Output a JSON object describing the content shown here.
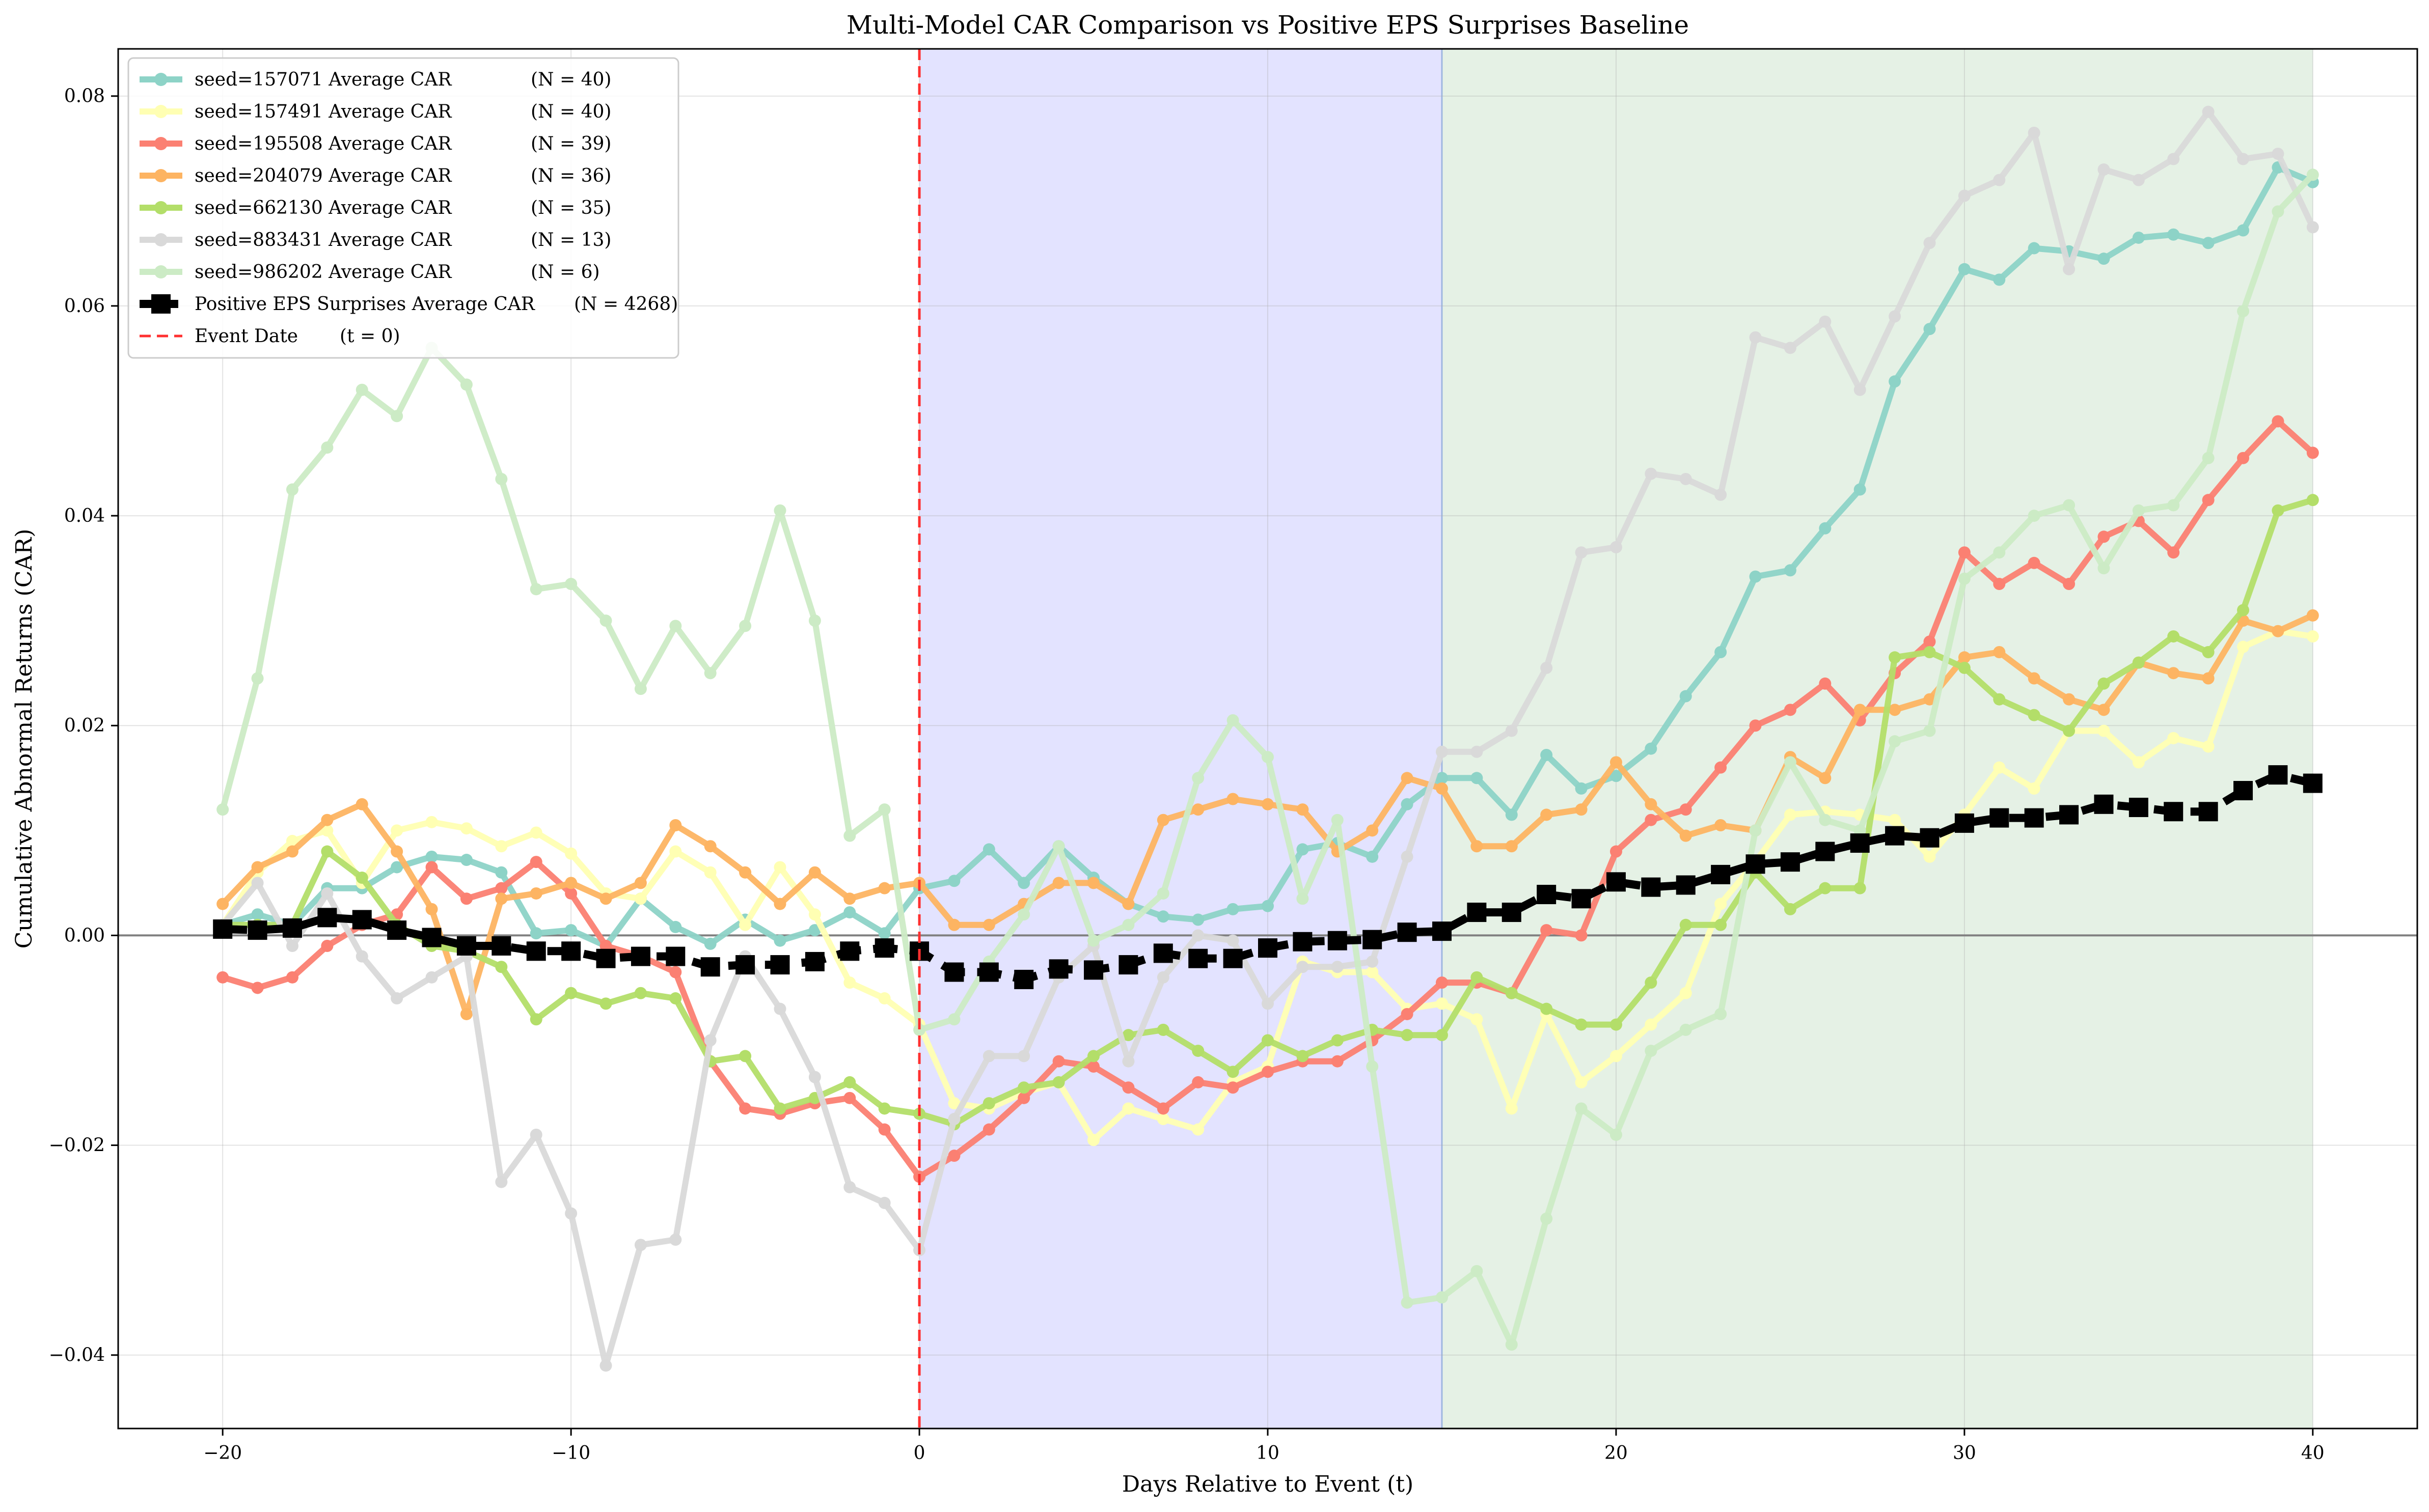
{
  "chart_data": {
    "type": "line",
    "title": "Multi-Model CAR Comparison vs Positive EPS Surprises Baseline",
    "xlabel": "Days Relative to Event (t)",
    "ylabel": "Cumulative Abnormal Returns (CAR)",
    "xlim": [
      -23,
      43
    ],
    "ylim": [
      -0.047,
      0.0845
    ],
    "xticks": [
      -20,
      -10,
      0,
      10,
      20,
      30,
      40
    ],
    "xtick_labels": [
      "−20",
      "−10",
      "0",
      "10",
      "20",
      "30",
      "40"
    ],
    "yticks": [
      -0.04,
      -0.02,
      0.0,
      0.02,
      0.04,
      0.06,
      0.08
    ],
    "ytick_labels": [
      "−0.04",
      "−0.02",
      "0.00",
      "0.02",
      "0.04",
      "0.06",
      "0.08"
    ],
    "grid": true,
    "legend_position": "upper left",
    "shaded_regions": [
      {
        "x0": 0,
        "x1": 15,
        "color": "#c8c8ff",
        "alpha": 0.5
      },
      {
        "x0": 15,
        "x1": 40,
        "color": "#bddcbd",
        "alpha": 0.4
      }
    ],
    "event_line": {
      "x": 0,
      "color": "#ff3030"
    },
    "x": [
      -20,
      -19,
      -18,
      -17,
      -16,
      -15,
      -14,
      -13,
      -12,
      -11,
      -10,
      -9,
      -8,
      -7,
      -6,
      -5,
      -4,
      -3,
      -2,
      -1,
      0,
      1,
      2,
      3,
      4,
      5,
      6,
      7,
      8,
      9,
      10,
      11,
      12,
      13,
      14,
      15,
      16,
      17,
      18,
      19,
      20,
      21,
      22,
      23,
      24,
      25,
      26,
      27,
      28,
      29,
      30,
      31,
      32,
      33,
      34,
      35,
      36,
      37,
      38,
      39,
      40
    ],
    "series": [
      {
        "name": "seed=157071 Average CAR",
        "n_label": "(N = 40)",
        "color": "#8dd3c7",
        "values": [
          0.001,
          0.002,
          0.001,
          0.0045,
          0.0045,
          0.0065,
          0.0075,
          0.0072,
          0.006,
          0.0002,
          0.0005,
          -0.001,
          0.0035,
          0.0008,
          -0.0008,
          0.0015,
          -0.0005,
          0.0005,
          0.0022,
          0.0002,
          0.0045,
          0.0052,
          0.0082,
          0.005,
          0.0085,
          0.0055,
          0.003,
          0.0018,
          0.0015,
          0.0025,
          0.0028,
          0.0082,
          0.0088,
          0.0075,
          0.0125,
          0.015,
          0.015,
          0.0115,
          0.0172,
          0.014,
          0.0152,
          0.0178,
          0.0228,
          0.027,
          0.0342,
          0.0348,
          0.0388,
          0.0425,
          0.0528,
          0.0578,
          0.0635,
          0.0625,
          0.0655,
          0.0652,
          0.0645,
          0.0665,
          0.0668,
          0.066,
          0.0672,
          0.0732,
          0.0718
        ]
      },
      {
        "name": "seed=157491 Average CAR",
        "n_label": "(N = 40)",
        "color": "#ffffb3",
        "values": [
          0.001,
          0.006,
          0.009,
          0.01,
          0.005,
          0.01,
          0.0108,
          0.0102,
          0.0085,
          0.0098,
          0.0078,
          0.004,
          0.0035,
          0.008,
          0.006,
          0.001,
          0.0065,
          0.002,
          -0.0045,
          -0.006,
          -0.0085,
          -0.016,
          -0.0165,
          -0.015,
          -0.014,
          -0.0195,
          -0.0165,
          -0.0175,
          -0.0185,
          -0.014,
          -0.0125,
          -0.0025,
          -0.0035,
          -0.0035,
          -0.007,
          -0.0065,
          -0.008,
          -0.0165,
          -0.0075,
          -0.014,
          -0.0115,
          -0.0085,
          -0.0055,
          0.003,
          0.007,
          0.0115,
          0.0118,
          0.0115,
          0.011,
          0.0075,
          0.0115,
          0.016,
          0.014,
          0.0195,
          0.0195,
          0.0165,
          0.0188,
          0.018,
          0.0275,
          0.029,
          0.0285
        ]
      },
      {
        "name": "seed=195508 Average CAR",
        "n_label": "(N = 39)",
        "color": "#fb8072",
        "values": [
          -0.004,
          -0.005,
          -0.004,
          -0.001,
          0.001,
          0.002,
          0.0065,
          0.0035,
          0.0045,
          0.007,
          0.004,
          -0.001,
          -0.002,
          -0.0035,
          -0.012,
          -0.0165,
          -0.017,
          -0.016,
          -0.0155,
          -0.0185,
          -0.023,
          -0.021,
          -0.0185,
          -0.0155,
          -0.012,
          -0.0125,
          -0.0145,
          -0.0165,
          -0.014,
          -0.0145,
          -0.013,
          -0.012,
          -0.012,
          -0.01,
          -0.0075,
          -0.0045,
          -0.0045,
          -0.0055,
          0.0005,
          0.0,
          0.008,
          0.011,
          0.012,
          0.016,
          0.02,
          0.0215,
          0.024,
          0.0205,
          0.025,
          0.028,
          0.0365,
          0.0335,
          0.0355,
          0.0335,
          0.038,
          0.0395,
          0.0365,
          0.0415,
          0.0455,
          0.049,
          0.046
        ]
      },
      {
        "name": "seed=204079 Average CAR",
        "n_label": "(N = 36)",
        "color": "#fdb462",
        "values": [
          0.003,
          0.0065,
          0.008,
          0.011,
          0.0125,
          0.008,
          0.0025,
          -0.0075,
          0.0035,
          0.004,
          0.005,
          0.0035,
          0.005,
          0.0105,
          0.0085,
          0.006,
          0.003,
          0.006,
          0.0035,
          0.0045,
          0.005,
          0.001,
          0.001,
          0.003,
          0.005,
          0.005,
          0.003,
          0.011,
          0.012,
          0.013,
          0.0125,
          0.012,
          0.008,
          0.01,
          0.015,
          0.014,
          0.0085,
          0.0085,
          0.0115,
          0.012,
          0.0165,
          0.0125,
          0.0095,
          0.0105,
          0.01,
          0.017,
          0.015,
          0.0215,
          0.0215,
          0.0225,
          0.0265,
          0.027,
          0.0245,
          0.0225,
          0.0215,
          0.026,
          0.025,
          0.0245,
          0.03,
          0.029,
          0.0305
        ]
      },
      {
        "name": "seed=662130 Average CAR",
        "n_label": "(N = 35)",
        "color": "#b3de69",
        "values": [
          0.001,
          0.001,
          0.001,
          0.008,
          0.0055,
          0.001,
          -0.001,
          -0.0015,
          -0.003,
          -0.008,
          -0.0055,
          -0.0065,
          -0.0055,
          -0.006,
          -0.012,
          -0.0115,
          -0.0165,
          -0.0155,
          -0.014,
          -0.0165,
          -0.017,
          -0.018,
          -0.016,
          -0.0145,
          -0.014,
          -0.0115,
          -0.0095,
          -0.009,
          -0.011,
          -0.013,
          -0.01,
          -0.0115,
          -0.01,
          -0.009,
          -0.0095,
          -0.0095,
          -0.004,
          -0.0055,
          -0.007,
          -0.0085,
          -0.0085,
          -0.0045,
          0.001,
          0.001,
          0.006,
          0.0025,
          0.0045,
          0.0045,
          0.0265,
          0.027,
          0.0255,
          0.0225,
          0.021,
          0.0195,
          0.024,
          0.026,
          0.0285,
          0.027,
          0.031,
          0.0405,
          0.0415
        ]
      },
      {
        "name": "seed=883431 Average CAR",
        "n_label": "(N = 13)",
        "color": "#d9d9d9",
        "values": [
          0.001,
          0.005,
          -0.001,
          0.004,
          -0.002,
          -0.006,
          -0.004,
          -0.002,
          -0.0235,
          -0.019,
          -0.0265,
          -0.041,
          -0.0295,
          -0.029,
          -0.01,
          -0.002,
          -0.007,
          -0.0135,
          -0.024,
          -0.0255,
          -0.03,
          -0.0175,
          -0.0115,
          -0.0115,
          -0.004,
          -0.001,
          -0.012,
          -0.004,
          0.0,
          -0.0005,
          -0.0065,
          -0.003,
          -0.003,
          -0.0025,
          0.0075,
          0.0175,
          0.0175,
          0.0195,
          0.0255,
          0.0365,
          0.037,
          0.044,
          0.0435,
          0.042,
          0.057,
          0.056,
          0.0585,
          0.052,
          0.059,
          0.066,
          0.0705,
          0.072,
          0.0765,
          0.0635,
          0.073,
          0.072,
          0.074,
          0.0785,
          0.074,
          0.0745,
          0.0675
        ]
      },
      {
        "name": "seed=986202 Average CAR",
        "n_label": "(N = 6)",
        "color": "#ccebc5",
        "values": [
          0.012,
          0.0245,
          0.0425,
          0.0465,
          0.052,
          0.0495,
          0.056,
          0.0525,
          0.0435,
          0.033,
          0.0335,
          0.03,
          0.0235,
          0.0295,
          0.025,
          0.0295,
          0.0405,
          0.03,
          0.0095,
          0.012,
          -0.009,
          -0.008,
          -0.0025,
          0.002,
          0.0085,
          -0.0005,
          0.001,
          0.004,
          0.015,
          0.0205,
          0.017,
          0.0035,
          0.011,
          -0.0125,
          -0.035,
          -0.0345,
          -0.032,
          -0.039,
          -0.027,
          -0.0165,
          -0.019,
          -0.011,
          -0.009,
          -0.0075,
          0.01,
          0.0165,
          0.011,
          0.01,
          0.0185,
          0.0195,
          0.034,
          0.0365,
          0.04,
          0.041,
          0.035,
          0.0405,
          0.041,
          0.0455,
          0.0595,
          0.069,
          0.0725
        ]
      }
    ],
    "baseline": {
      "name": "Positive EPS Surprises Average CAR",
      "n_label": "(N = 4268)",
      "color": "#000000",
      "values": [
        0.0006,
        0.0005,
        0.0007,
        0.0017,
        0.0015,
        0.0005,
        -0.0002,
        -0.001,
        -0.001,
        -0.0015,
        -0.0015,
        -0.0022,
        -0.002,
        -0.002,
        -0.003,
        -0.0028,
        -0.0028,
        -0.0025,
        -0.0015,
        -0.0012,
        -0.0015,
        -0.0035,
        -0.0035,
        -0.0042,
        -0.0032,
        -0.0033,
        -0.0028,
        -0.0017,
        -0.0022,
        -0.0022,
        -0.0012,
        -0.0006,
        -0.0005,
        -0.0004,
        0.0003,
        0.0004,
        0.0022,
        0.0022,
        0.0039,
        0.0035,
        0.0051,
        0.0046,
        0.0048,
        0.0058,
        0.0068,
        0.007,
        0.008,
        0.0088,
        0.0095,
        0.0093,
        0.0107,
        0.0112,
        0.0112,
        0.0115,
        0.0125,
        0.0122,
        0.0118,
        0.0118,
        0.0138,
        0.0153,
        0.0145
      ]
    },
    "event_label": "Event Date",
    "event_n_label": "(t = 0)"
  }
}
